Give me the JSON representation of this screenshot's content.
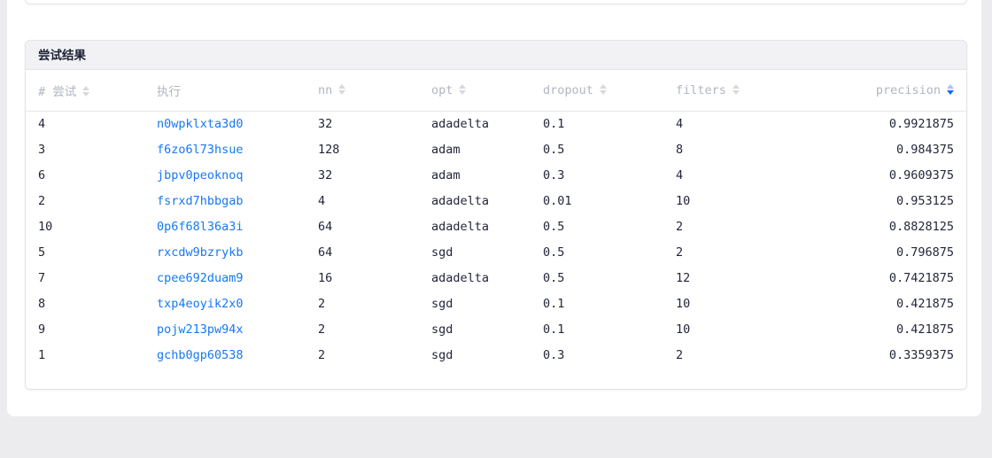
{
  "page": {
    "background": "#ececee"
  },
  "colors": {
    "link": "#1778f2",
    "sort_active": "#1668f2",
    "sort_active_light": "#a6c3f8",
    "sort_inactive": "#d8d8dd",
    "header_text": "#b1b6c0",
    "cell_text": "#23263a",
    "card_header_bg": "#f2f2f4"
  },
  "results_card": {
    "title": "尝试结果"
  },
  "table": {
    "columns": [
      {
        "key": "trial",
        "label": "# 尝试",
        "sortable": true,
        "sort": "none",
        "align": "left"
      },
      {
        "key": "execution",
        "label": "执行",
        "sortable": false,
        "sort": "none",
        "align": "left"
      },
      {
        "key": "nn",
        "label": "nn",
        "sortable": true,
        "sort": "none",
        "align": "left"
      },
      {
        "key": "opt",
        "label": "opt",
        "sortable": true,
        "sort": "none",
        "align": "left"
      },
      {
        "key": "dropout",
        "label": "dropout",
        "sortable": true,
        "sort": "none",
        "align": "left"
      },
      {
        "key": "filters",
        "label": "filters",
        "sortable": true,
        "sort": "none",
        "align": "left"
      },
      {
        "key": "precision",
        "label": "precision",
        "sortable": true,
        "sort": "desc",
        "align": "right"
      }
    ],
    "rows": [
      {
        "trial": "4",
        "execution": "n0wpklxta3d0",
        "nn": "32",
        "opt": "adadelta",
        "dropout": "0.1",
        "filters": "4",
        "precision": "0.9921875"
      },
      {
        "trial": "3",
        "execution": "f6zo6l73hsue",
        "nn": "128",
        "opt": "adam",
        "dropout": "0.5",
        "filters": "8",
        "precision": "0.984375"
      },
      {
        "trial": "6",
        "execution": "jbpv0peoknoq",
        "nn": "32",
        "opt": "adam",
        "dropout": "0.3",
        "filters": "4",
        "precision": "0.9609375"
      },
      {
        "trial": "2",
        "execution": "fsrxd7hbbgab",
        "nn": "4",
        "opt": "adadelta",
        "dropout": "0.01",
        "filters": "10",
        "precision": "0.953125"
      },
      {
        "trial": "10",
        "execution": "0p6f68l36a3i",
        "nn": "64",
        "opt": "adadelta",
        "dropout": "0.5",
        "filters": "2",
        "precision": "0.8828125"
      },
      {
        "trial": "5",
        "execution": "rxcdw9bzrykb",
        "nn": "64",
        "opt": "sgd",
        "dropout": "0.5",
        "filters": "2",
        "precision": "0.796875"
      },
      {
        "trial": "7",
        "execution": "cpee692duam9",
        "nn": "16",
        "opt": "adadelta",
        "dropout": "0.5",
        "filters": "12",
        "precision": "0.7421875"
      },
      {
        "trial": "8",
        "execution": "txp4eoyik2x0",
        "nn": "2",
        "opt": "sgd",
        "dropout": "0.1",
        "filters": "10",
        "precision": "0.421875"
      },
      {
        "trial": "9",
        "execution": "pojw213pw94x",
        "nn": "2",
        "opt": "sgd",
        "dropout": "0.1",
        "filters": "10",
        "precision": "0.421875"
      },
      {
        "trial": "1",
        "execution": "gchb0gp60538",
        "nn": "2",
        "opt": "sgd",
        "dropout": "0.3",
        "filters": "2",
        "precision": "0.3359375"
      }
    ]
  }
}
